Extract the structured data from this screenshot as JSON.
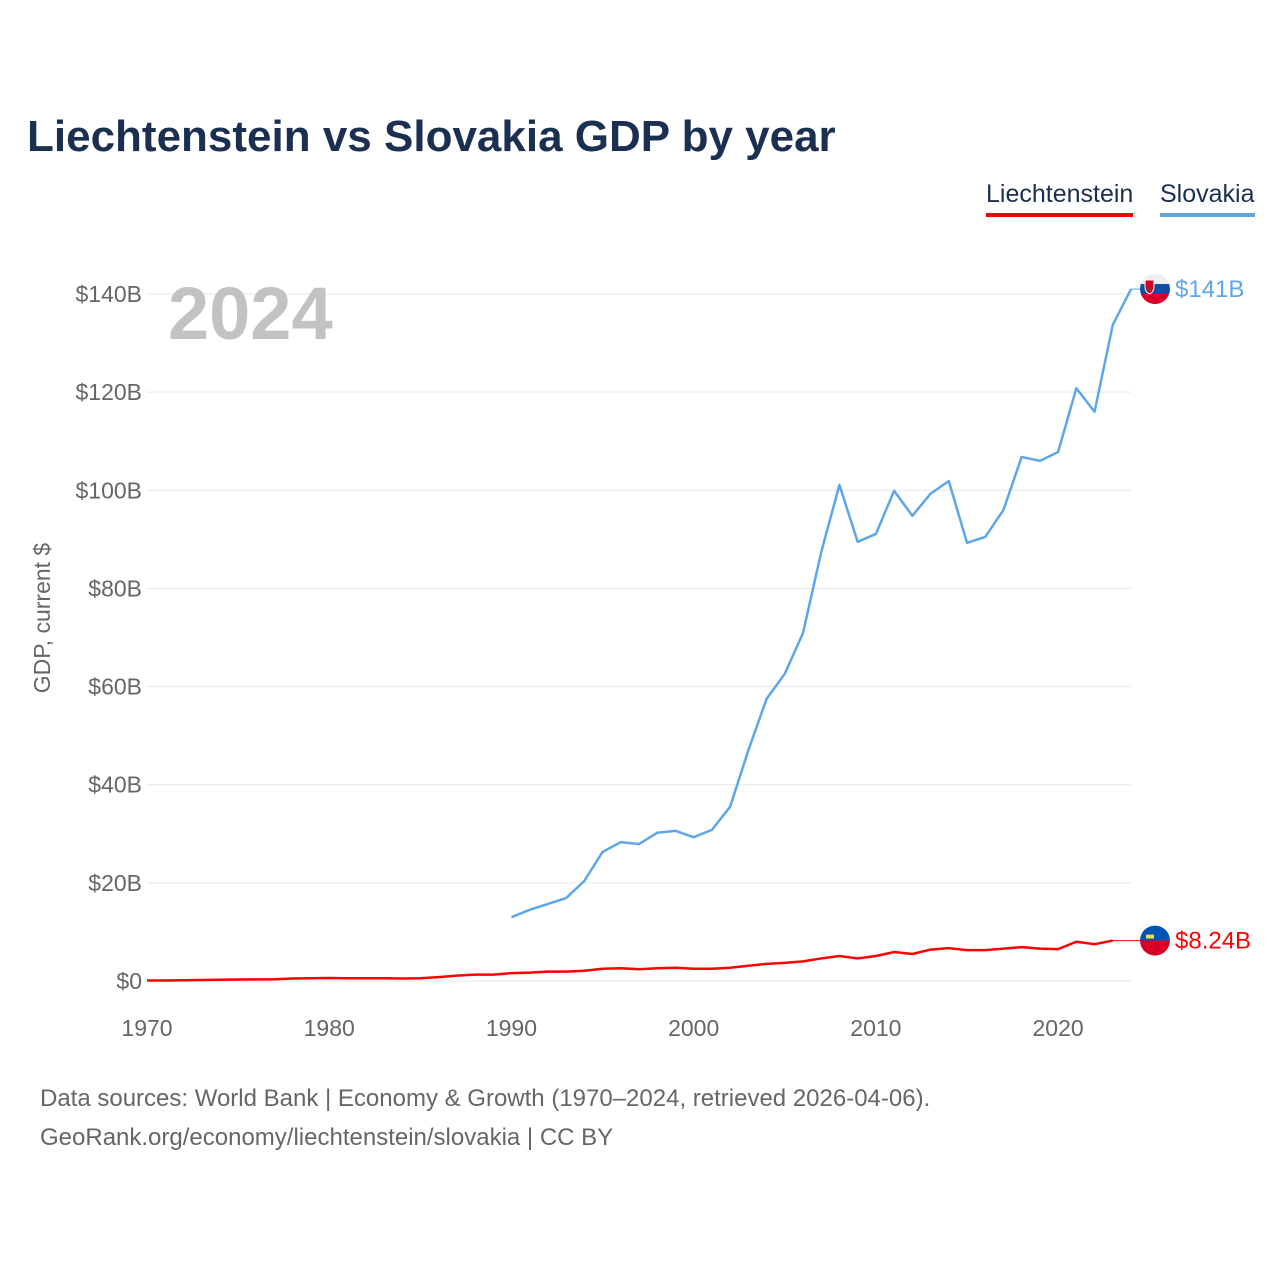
{
  "chart_data": {
    "type": "line",
    "title": "Liechtenstein vs Slovakia GDP by year",
    "ylabel": "GDP, current $",
    "xlabel": "",
    "year_watermark": "2024",
    "xlim": [
      1970,
      2024
    ],
    "ylim": [
      0,
      140
    ],
    "x_ticks": [
      1970,
      1980,
      1990,
      2000,
      2010,
      2020
    ],
    "y_ticks": [
      0,
      20,
      40,
      60,
      80,
      100,
      120,
      140
    ],
    "y_tick_labels": [
      "$0",
      "$20B",
      "$40B",
      "$60B",
      "$80B",
      "$100B",
      "$120B",
      "$140B"
    ],
    "grid": true,
    "legend_placement": "top-right",
    "series": [
      {
        "name": "Liechtenstein",
        "color": "#ff0000",
        "end_label": "$8.24B",
        "flag": "liechtenstein-flag",
        "x": [
          1970,
          1971,
          1972,
          1973,
          1974,
          1975,
          1976,
          1977,
          1978,
          1979,
          1980,
          1981,
          1982,
          1983,
          1984,
          1985,
          1986,
          1987,
          1988,
          1989,
          1990,
          1991,
          1992,
          1993,
          1994,
          1995,
          1996,
          1997,
          1998,
          1999,
          2000,
          2001,
          2002,
          2003,
          2004,
          2005,
          2006,
          2007,
          2008,
          2009,
          2010,
          2011,
          2012,
          2013,
          2014,
          2015,
          2016,
          2017,
          2018,
          2019,
          2020,
          2021,
          2022,
          2023
        ],
        "values": [
          0.1,
          0.1,
          0.15,
          0.2,
          0.25,
          0.3,
          0.32,
          0.35,
          0.5,
          0.55,
          0.6,
          0.55,
          0.55,
          0.55,
          0.5,
          0.55,
          0.8,
          1.1,
          1.3,
          1.3,
          1.6,
          1.7,
          1.9,
          1.9,
          2.1,
          2.5,
          2.6,
          2.4,
          2.6,
          2.7,
          2.5,
          2.5,
          2.7,
          3.1,
          3.5,
          3.7,
          4.0,
          4.6,
          5.1,
          4.6,
          5.1,
          5.9,
          5.5,
          6.4,
          6.7,
          6.3,
          6.3,
          6.6,
          6.9,
          6.6,
          6.5,
          8.0,
          7.5,
          8.24
        ]
      },
      {
        "name": "Slovakia",
        "color": "#5ea6ea",
        "end_label": "$141B",
        "flag": "slovakia-flag",
        "x": [
          1990,
          1991,
          1992,
          1993,
          1994,
          1995,
          1996,
          1997,
          1998,
          1999,
          2000,
          2001,
          2002,
          2003,
          2004,
          2005,
          2006,
          2007,
          2008,
          2009,
          2010,
          2011,
          2012,
          2013,
          2014,
          2015,
          2016,
          2017,
          2018,
          2019,
          2020,
          2021,
          2022,
          2023,
          2024
        ],
        "values": [
          13.0,
          14.5,
          15.7,
          16.9,
          20.4,
          26.3,
          28.3,
          27.9,
          30.2,
          30.6,
          29.3,
          30.8,
          35.5,
          47.0,
          57.5,
          62.6,
          70.9,
          87.4,
          101.1,
          89.5,
          91.1,
          99.9,
          94.8,
          99.3,
          101.9,
          89.3,
          90.5,
          96.0,
          106.8,
          106.0,
          107.8,
          120.8,
          116.0,
          133.7,
          141.0
        ]
      }
    ]
  },
  "footer": {
    "source": "Data sources: World Bank | Economy & Growth (1970–2024, retrieved 2026-04-06).",
    "credit": "GeoRank.org/economy/liechtenstein/slovakia | CC BY"
  }
}
